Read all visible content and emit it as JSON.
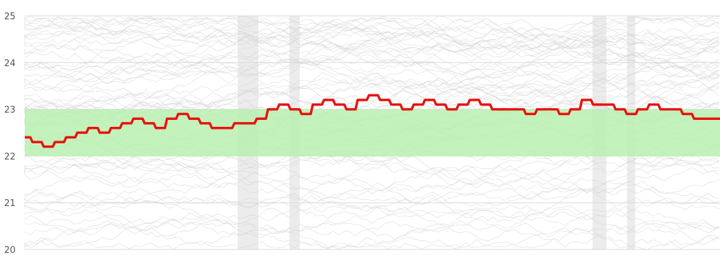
{
  "chart_data": {
    "type": "line",
    "title": "",
    "xlabel": "",
    "ylabel": "",
    "ylim": [
      20,
      25
    ],
    "yticks": [
      "20",
      "21",
      "22",
      "23",
      "24",
      "25"
    ],
    "grid": true,
    "target_band": {
      "from": 22,
      "to": 23,
      "color": "#b8f0b0"
    },
    "series": [
      {
        "color": "#e8130d",
        "points": [
          [
            0,
            22.4
          ],
          [
            1,
            22.3
          ],
          [
            2,
            22.2
          ],
          [
            3,
            22.3
          ],
          [
            4,
            22.4
          ],
          [
            5,
            22.5
          ],
          [
            6,
            22.6
          ],
          [
            7,
            22.5
          ],
          [
            8,
            22.6
          ],
          [
            9,
            22.7
          ],
          [
            10,
            22.8
          ],
          [
            11,
            22.7
          ],
          [
            12,
            22.6
          ],
          [
            13,
            22.8
          ],
          [
            14,
            22.9
          ],
          [
            15,
            22.8
          ],
          [
            16,
            22.7
          ],
          [
            17,
            22.6
          ],
          [
            18,
            22.6
          ],
          [
            19,
            22.7
          ],
          [
            20,
            22.7
          ],
          [
            21,
            22.8
          ],
          [
            22,
            23.0
          ],
          [
            23,
            23.1
          ],
          [
            24,
            23.0
          ],
          [
            25,
            22.9
          ],
          [
            26,
            23.1
          ],
          [
            27,
            23.2
          ],
          [
            28,
            23.1
          ],
          [
            29,
            23.0
          ],
          [
            30,
            23.2
          ],
          [
            31,
            23.3
          ],
          [
            32,
            23.2
          ],
          [
            33,
            23.1
          ],
          [
            34,
            23.0
          ],
          [
            35,
            23.1
          ],
          [
            36,
            23.2
          ],
          [
            37,
            23.1
          ],
          [
            38,
            23.0
          ],
          [
            39,
            23.1
          ],
          [
            40,
            23.2
          ],
          [
            41,
            23.1
          ],
          [
            42,
            23.0
          ],
          [
            43,
            23.0
          ],
          [
            44,
            23.0
          ],
          [
            45,
            22.9
          ],
          [
            46,
            23.0
          ],
          [
            47,
            23.0
          ],
          [
            48,
            22.9
          ],
          [
            49,
            23.0
          ],
          [
            50,
            23.2
          ],
          [
            51,
            23.1
          ],
          [
            52,
            23.1
          ],
          [
            53,
            23.0
          ],
          [
            54,
            22.9
          ],
          [
            55,
            23.0
          ],
          [
            56,
            23.1
          ],
          [
            57,
            23.0
          ],
          [
            58,
            23.0
          ],
          [
            59,
            22.9
          ],
          [
            60,
            22.8
          ],
          [
            61,
            22.8
          ],
          [
            62,
            22.8
          ]
        ]
      }
    ]
  }
}
